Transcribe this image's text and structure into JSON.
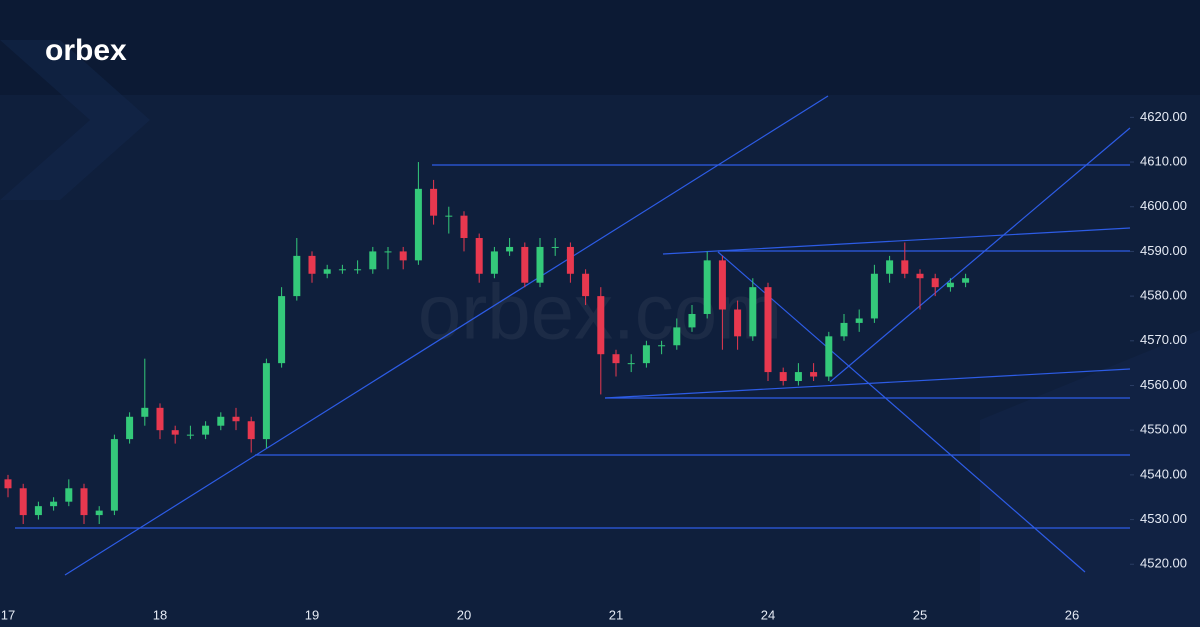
{
  "brand": "orbex",
  "watermark": "orbex.com",
  "chart_data": {
    "type": "candlestick",
    "x_labels": [
      "17",
      "18",
      "19",
      "20",
      "21",
      "24",
      "25",
      "26"
    ],
    "up_color": "#34c97a",
    "down_color": "#e8384f",
    "ylim": [
      4512,
      4625
    ],
    "yticks": [
      {
        "value": 4520,
        "label": "4520.00"
      },
      {
        "value": 4530,
        "label": "4530.00"
      },
      {
        "value": 4540,
        "label": "4540.00"
      },
      {
        "value": 4550,
        "label": "4550.00"
      },
      {
        "value": 4560,
        "label": "4560.00"
      },
      {
        "value": 4570,
        "label": "4570.00"
      },
      {
        "value": 4580,
        "label": "4580.00"
      },
      {
        "value": 4590,
        "label": "4590.00"
      },
      {
        "value": 4600,
        "label": "4600.00"
      },
      {
        "value": 4610,
        "label": "4610.00"
      },
      {
        "value": 4620,
        "label": "4620.00"
      }
    ],
    "candles": [
      [
        4539,
        4540,
        4535,
        4537
      ],
      [
        4537,
        4538,
        4529,
        4531
      ],
      [
        4531,
        4534,
        4530,
        4533
      ],
      [
        4533,
        4535,
        4532,
        4534
      ],
      [
        4534,
        4539,
        4533,
        4537
      ],
      [
        4537,
        4538,
        4529,
        4531
      ],
      [
        4531,
        4533,
        4529,
        4532
      ],
      [
        4532,
        4549,
        4531,
        4548
      ],
      [
        4548,
        4554,
        4547,
        4553
      ],
      [
        4553,
        4566,
        4551,
        4555
      ],
      [
        4555,
        4556,
        4548,
        4550
      ],
      [
        4550,
        4551,
        4547,
        4549
      ],
      [
        4549,
        4551,
        4548,
        4549
      ],
      [
        4549,
        4552,
        4548,
        4551
      ],
      [
        4551,
        4554,
        4550,
        4553
      ],
      [
        4553,
        4555,
        4550,
        4552
      ],
      [
        4552,
        4553,
        4545,
        4548
      ],
      [
        4548,
        4566,
        4546,
        4565
      ],
      [
        4565,
        4582,
        4564,
        4580
      ],
      [
        4580,
        4593,
        4579,
        4589
      ],
      [
        4589,
        4590,
        4583,
        4585
      ],
      [
        4585,
        4587,
        4584,
        4586
      ],
      [
        4586,
        4587,
        4585,
        4586
      ],
      [
        4586,
        4588,
        4585,
        4586
      ],
      [
        4586,
        4591,
        4585,
        4590
      ],
      [
        4590,
        4591,
        4586,
        4590
      ],
      [
        4590,
        4591,
        4586,
        4588
      ],
      [
        4588,
        4610,
        4587,
        4604
      ],
      [
        4604,
        4606,
        4596,
        4598
      ],
      [
        4598,
        4600,
        4594,
        4598
      ],
      [
        4598,
        4599,
        4590,
        4593
      ],
      [
        4593,
        4594,
        4583,
        4585
      ],
      [
        4585,
        4591,
        4584,
        4590
      ],
      [
        4590,
        4593,
        4589,
        4591
      ],
      [
        4591,
        4592,
        4582,
        4583
      ],
      [
        4583,
        4593,
        4582,
        4591
      ],
      [
        4591,
        4593,
        4589,
        4591
      ],
      [
        4591,
        4592,
        4583,
        4585
      ],
      [
        4585,
        4586,
        4578,
        4580
      ],
      [
        4580,
        4582,
        4558,
        4567
      ],
      [
        4567,
        4568,
        4562,
        4565
      ],
      [
        4565,
        4567,
        4563,
        4565
      ],
      [
        4565,
        4570,
        4564,
        4569
      ],
      [
        4569,
        4570,
        4567,
        4569
      ],
      [
        4569,
        4575,
        4568,
        4573
      ],
      [
        4573,
        4578,
        4572,
        4576
      ],
      [
        4576,
        4590,
        4575,
        4588
      ],
      [
        4588,
        4589,
        4568,
        4577
      ],
      [
        4577,
        4579,
        4568,
        4571
      ],
      [
        4571,
        4584,
        4570,
        4582
      ],
      [
        4582,
        4583,
        4561,
        4563
      ],
      [
        4563,
        4564,
        4560,
        4561
      ],
      [
        4561,
        4565,
        4560,
        4563
      ],
      [
        4563,
        4565,
        4561,
        4562
      ],
      [
        4562,
        4572,
        4561,
        4571
      ],
      [
        4571,
        4576,
        4570,
        4574
      ],
      [
        4574,
        4577,
        4572,
        4575
      ],
      [
        4575,
        4587,
        4574,
        4585
      ],
      [
        4585,
        4589,
        4583,
        4588
      ],
      [
        4588,
        4592,
        4584,
        4585
      ],
      [
        4585,
        4586,
        4577,
        4584
      ],
      [
        4584,
        4585,
        4580,
        4582
      ],
      [
        4582,
        4584,
        4581,
        4583
      ],
      [
        4583,
        4585,
        4582,
        4584
      ]
    ]
  }
}
